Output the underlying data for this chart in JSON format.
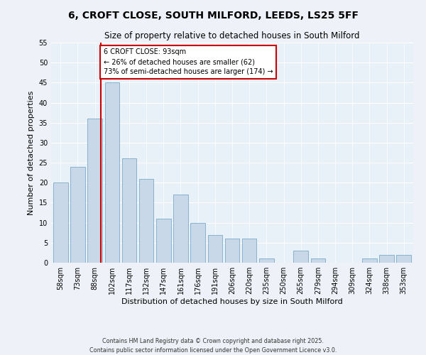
{
  "title": "6, CROFT CLOSE, SOUTH MILFORD, LEEDS, LS25 5FF",
  "subtitle": "Size of property relative to detached houses in South Milford",
  "xlabel": "Distribution of detached houses by size in South Milford",
  "ylabel": "Number of detached properties",
  "bar_labels": [
    "58sqm",
    "73sqm",
    "88sqm",
    "102sqm",
    "117sqm",
    "132sqm",
    "147sqm",
    "161sqm",
    "176sqm",
    "191sqm",
    "206sqm",
    "220sqm",
    "235sqm",
    "250sqm",
    "265sqm",
    "279sqm",
    "294sqm",
    "309sqm",
    "324sqm",
    "338sqm",
    "353sqm"
  ],
  "bar_values": [
    20,
    24,
    36,
    45,
    26,
    21,
    11,
    17,
    10,
    7,
    6,
    6,
    1,
    0,
    3,
    1,
    0,
    0,
    1,
    2,
    2
  ],
  "bar_color": "#c8d8e8",
  "bar_edgecolor": "#7aaac8",
  "vline_color": "#cc0000",
  "property_line_label": "6 CROFT CLOSE: 93sqm",
  "annotation_line1": "← 26% of detached houses are smaller (62)",
  "annotation_line2": "73% of semi-detached houses are larger (174) →",
  "annotation_box_color": "#ffffff",
  "annotation_box_edgecolor": "#cc0000",
  "ylim": [
    0,
    55
  ],
  "yticks": [
    0,
    5,
    10,
    15,
    20,
    25,
    30,
    35,
    40,
    45,
    50,
    55
  ],
  "background_color": "#e8f0f8",
  "fig_background_color": "#eef2f8",
  "grid_color": "#ffffff",
  "footer": "Contains HM Land Registry data © Crown copyright and database right 2025.\nContains public sector information licensed under the Open Government Licence v3.0.",
  "title_fontsize": 10,
  "subtitle_fontsize": 8.5,
  "xlabel_fontsize": 8,
  "ylabel_fontsize": 8,
  "tick_fontsize": 7,
  "annotation_fontsize": 7
}
